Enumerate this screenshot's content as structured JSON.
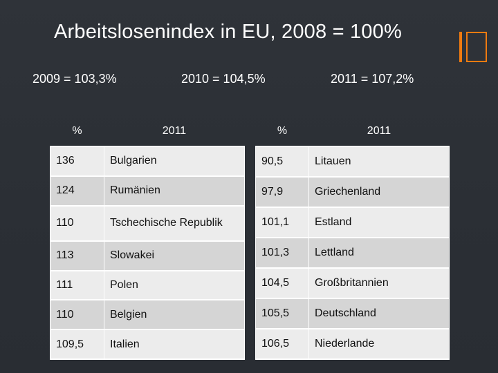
{
  "title": "Arbeitslosenindex in EU, 2008 = 100%",
  "stats": {
    "y2009": "2009 = 103,3%",
    "y2010": "2010 = 104,5%",
    "y2011": "2011 = 107,2%"
  },
  "table_left": {
    "headers": [
      "%",
      "2011"
    ],
    "rows": [
      [
        "136",
        "Bulgarien"
      ],
      [
        "124",
        "Rumänien"
      ],
      [
        "110",
        "Tschechische Republik"
      ],
      [
        "113",
        "Slowakei"
      ],
      [
        "111",
        "Polen"
      ],
      [
        "110",
        "Belgien"
      ],
      [
        "109,5",
        "Italien"
      ]
    ]
  },
  "table_right": {
    "headers": [
      "%",
      "2011"
    ],
    "rows": [
      [
        "90,5",
        "Litauen"
      ],
      [
        "97,9",
        "Griechenland"
      ],
      [
        "101,1",
        "Estland"
      ],
      [
        "101,3",
        "Lettland"
      ],
      [
        "104,5",
        "Großbritannien"
      ],
      [
        "105,5",
        "Deutschland"
      ],
      [
        "106,5",
        "Niederlande"
      ]
    ]
  },
  "colors": {
    "accent": "#f07b10",
    "background": "#2c3036"
  }
}
